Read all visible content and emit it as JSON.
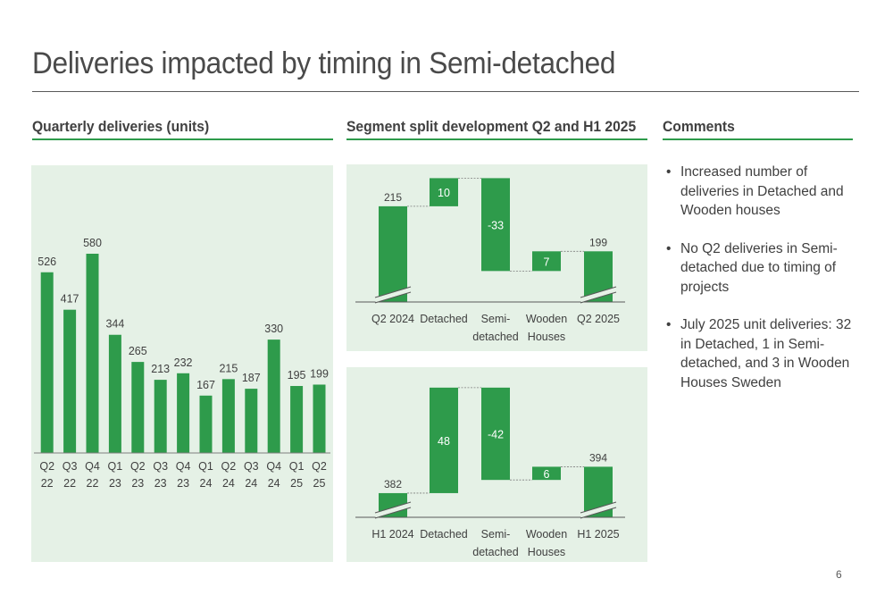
{
  "title": "Deliveries impacted by timing in Semi-detached",
  "headers": {
    "quarterly": "Quarterly deliveries (units)",
    "segment": "Segment split development Q2 and H1 2025",
    "comments": "Comments"
  },
  "colors": {
    "accent": "#2e9b4b",
    "panel_bg": "#e5f1e6",
    "text": "#404040"
  },
  "comments": [
    "Increased number of deliveries in Detached and Wooden houses",
    "No Q2 deliveries in Semi-detached due to timing of projects",
    "July 2025 unit deliveries: 32 in Detached, 1 in Semi-detached, and 3 in Wooden Houses Sweden"
  ],
  "bullet": "•",
  "page_number": "6",
  "chart_data": [
    {
      "type": "bar",
      "title": "Quarterly deliveries (units)",
      "categories": [
        [
          "Q2",
          "22"
        ],
        [
          "Q3",
          "22"
        ],
        [
          "Q4",
          "22"
        ],
        [
          "Q1",
          "23"
        ],
        [
          "Q2",
          "23"
        ],
        [
          "Q3",
          "23"
        ],
        [
          "Q4",
          "23"
        ],
        [
          "Q1",
          "24"
        ],
        [
          "Q2",
          "24"
        ],
        [
          "Q3",
          "24"
        ],
        [
          "Q4",
          "24"
        ],
        [
          "Q1",
          "25"
        ],
        [
          "Q2",
          "25"
        ]
      ],
      "values": [
        526,
        417,
        580,
        344,
        265,
        213,
        232,
        167,
        215,
        187,
        330,
        195,
        199
      ],
      "ylim": [
        0,
        600
      ]
    },
    {
      "type": "waterfall",
      "categories": [
        [
          "Q2 2024"
        ],
        [
          "Detached"
        ],
        [
          "Semi-",
          "detached"
        ],
        [
          "Wooden",
          "Houses"
        ],
        [
          "Q2 2025"
        ]
      ],
      "start": 215,
      "deltas": [
        10,
        -33,
        7
      ],
      "end": 199,
      "labels": [
        "215",
        "10",
        "-33",
        "7",
        "199"
      ],
      "axis_break": true
    },
    {
      "type": "waterfall",
      "categories": [
        [
          "H1 2024"
        ],
        [
          "Detached"
        ],
        [
          "Semi-",
          "detached"
        ],
        [
          "Wooden",
          "Houses"
        ],
        [
          "H1 2025"
        ]
      ],
      "start": 382,
      "deltas": [
        48,
        -42,
        6
      ],
      "end": 394,
      "labels": [
        "382",
        "48",
        "-42",
        "6",
        "394"
      ],
      "axis_break": true
    }
  ]
}
